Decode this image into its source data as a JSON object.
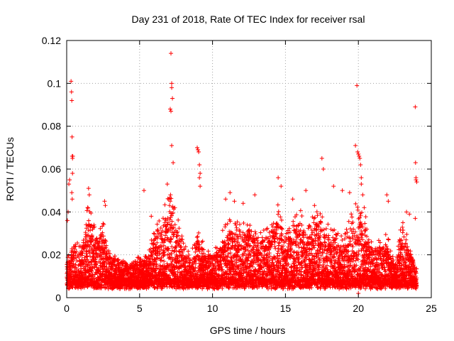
{
  "chart_data": {
    "type": "scatter",
    "title": "Day 231 of 2018, Rate Of TEC Index for receiver rsal",
    "xlabel": "GPS time / hours",
    "ylabel": "ROTI / TECUs",
    "xlim": [
      0,
      25
    ],
    "ylim": [
      0,
      0.12
    ],
    "x_ticks": [
      0,
      5,
      10,
      15,
      20,
      25
    ],
    "x_tick_labels": [
      "0",
      "5",
      "10",
      "15",
      "20",
      "25"
    ],
    "y_ticks": [
      0,
      0.02,
      0.04,
      0.06,
      0.08,
      0.1,
      0.12
    ],
    "y_tick_labels": [
      "0",
      "0.02",
      "0.04",
      "0.06",
      "0.08",
      "0.1",
      "0.12"
    ],
    "grid": true,
    "marker": "+",
    "color": "#ff0000",
    "series": [
      {
        "name": "ROTI",
        "outliers": {
          "x": [
            0.05,
            0.1,
            0.15,
            0.2,
            0.3,
            0.33,
            0.35,
            0.37,
            0.38,
            0.4,
            0.4,
            0.42,
            0.35,
            0.38,
            1.5,
            1.55,
            2.6,
            2.65,
            5.3,
            5.8,
            6.9,
            7.0,
            7.05,
            7.1,
            7.12,
            7.15,
            7.2,
            7.2,
            7.25,
            7.1,
            7.15,
            7.2,
            7.3,
            8.95,
            9.0,
            9.05,
            9.1,
            9.15,
            9.1,
            9.15,
            10.9,
            11.2,
            11.5,
            12.1,
            12.9,
            14.5,
            14.7,
            15.5,
            16.4,
            17.5,
            17.6,
            18.3,
            18.9,
            19.4,
            19.8,
            19.9,
            19.95,
            20.0,
            20.05,
            20.1,
            20.15,
            20.2,
            20.2,
            20.3,
            20.4,
            20.0,
            21.95,
            22.05,
            23.3,
            23.5,
            23.9,
            23.92,
            23.95,
            23.95,
            24.0,
            23.9
          ],
          "y": [
            0.036,
            0.04,
            0.053,
            0.055,
            0.101,
            0.096,
            0.092,
            0.075,
            0.066,
            0.065,
            0.058,
            0.066,
            0.049,
            0.046,
            0.051,
            0.048,
            0.045,
            0.043,
            0.05,
            0.038,
            0.053,
            0.046,
            0.043,
            0.045,
            0.048,
            0.114,
            0.1,
            0.098,
            0.093,
            0.088,
            0.087,
            0.071,
            0.063,
            0.07,
            0.069,
            0.068,
            0.062,
            0.058,
            0.056,
            0.052,
            0.046,
            0.049,
            0.045,
            0.044,
            0.048,
            0.056,
            0.052,
            0.046,
            0.05,
            0.065,
            0.06,
            0.052,
            0.05,
            0.049,
            0.071,
            0.099,
            0.068,
            0.067,
            0.066,
            0.065,
            0.062,
            0.053,
            0.056,
            0.048,
            0.042,
            0.002,
            0.048,
            0.045,
            0.04,
            0.039,
            0.089,
            0.063,
            0.056,
            0.055,
            0.054,
            0.037
          ]
        },
        "dense_profile": {
          "description": "per-hour typical upper envelope of the dense point cloud (ROTI / TECUs)",
          "hours": [
            0,
            0.5,
            1,
            1.5,
            2,
            2.5,
            3,
            3.5,
            4,
            4.5,
            5,
            5.5,
            6,
            6.5,
            7,
            7.5,
            8,
            8.5,
            9,
            9.5,
            10,
            10.5,
            11,
            11.5,
            12,
            12.5,
            13,
            13.5,
            14,
            14.5,
            15,
            15.5,
            16,
            16.5,
            17,
            17.5,
            18,
            18.5,
            19,
            19.5,
            20,
            20.5,
            21,
            21.5,
            22,
            22.5,
            23,
            23.5,
            24
          ],
          "upper": [
            0.013,
            0.022,
            0.018,
            0.035,
            0.024,
            0.028,
            0.017,
            0.014,
            0.013,
            0.013,
            0.015,
            0.015,
            0.025,
            0.03,
            0.038,
            0.032,
            0.02,
            0.015,
            0.026,
            0.018,
            0.016,
            0.022,
            0.03,
            0.028,
            0.026,
            0.03,
            0.024,
            0.026,
            0.03,
            0.034,
            0.022,
            0.03,
            0.032,
            0.024,
            0.034,
            0.03,
            0.026,
            0.024,
            0.022,
            0.03,
            0.036,
            0.03,
            0.018,
            0.022,
            0.024,
            0.012,
            0.028,
            0.02,
            0.01
          ],
          "lower": 0.004
        }
      }
    ]
  }
}
